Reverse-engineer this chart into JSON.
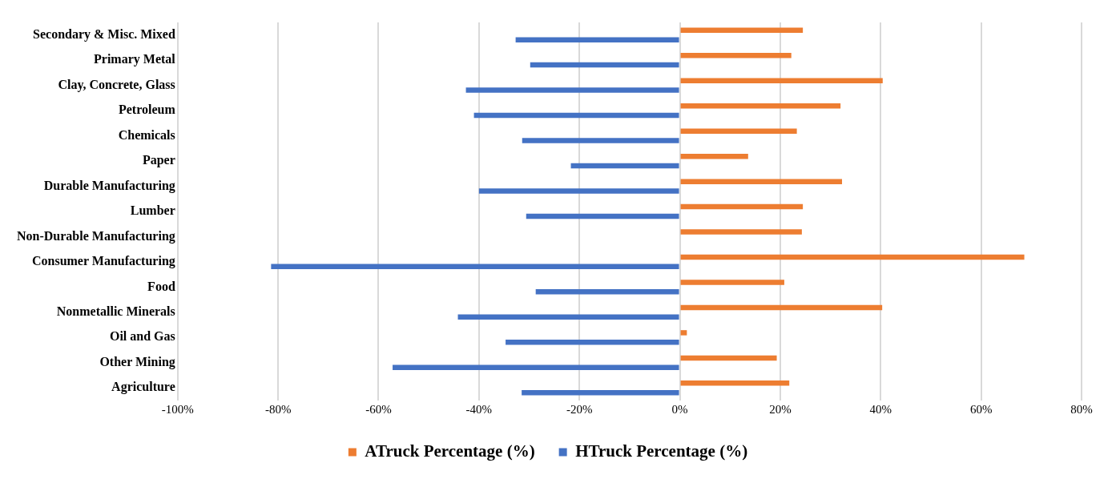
{
  "chart_data": {
    "type": "bar",
    "orientation": "horizontal",
    "categories": [
      "Secondary & Misc. Mixed",
      "Primary Metal",
      "Clay, Concrete, Glass",
      "Petroleum",
      "Chemicals",
      "Paper",
      "Durable Manufacturing",
      "Lumber",
      "Non-Durable Manufacturing",
      "Consumer Manufacturing",
      "Food",
      "Nonmetallic Minerals",
      "Oil and Gas",
      "Other Mining",
      "Agriculture"
    ],
    "series": [
      {
        "name": "ATruck Percentage (%)",
        "color": "#ed7d31",
        "values": [
          24.5,
          22.2,
          40.4,
          32.0,
          23.3,
          13.6,
          32.3,
          24.5,
          24.3,
          68.6,
          20.8,
          40.3,
          1.4,
          19.3,
          21.8
        ]
      },
      {
        "name": "HTruck Percentage (%)",
        "color": "#4472c4",
        "values": [
          -32.7,
          -29.8,
          -42.6,
          -41.0,
          -31.4,
          -21.7,
          -40.0,
          -30.6,
          null,
          -81.4,
          -28.7,
          -44.2,
          -34.7,
          -57.2,
          -31.5
        ]
      }
    ],
    "xlim": [
      -100,
      80
    ],
    "xticks": [
      {
        "value": -100,
        "label": "-100%"
      },
      {
        "value": -80,
        "label": "-80%"
      },
      {
        "value": -60,
        "label": "-60%"
      },
      {
        "value": -40,
        "label": "-40%"
      },
      {
        "value": -20,
        "label": "-20%"
      },
      {
        "value": 0,
        "label": "0%"
      },
      {
        "value": 20,
        "label": "20%"
      },
      {
        "value": 40,
        "label": "40%"
      },
      {
        "value": 60,
        "label": "60%"
      },
      {
        "value": 80,
        "label": "80%"
      }
    ],
    "grid": "x",
    "legend": "bottom"
  }
}
